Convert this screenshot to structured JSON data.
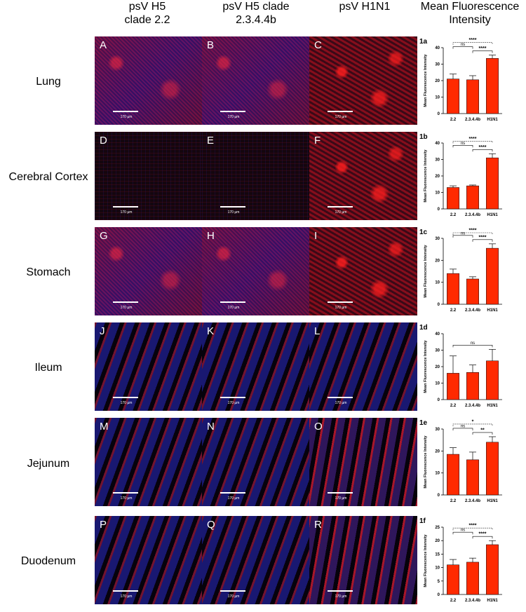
{
  "column_headers": [
    {
      "line1": "psV H5",
      "line2": "clade 2.2"
    },
    {
      "line1": "psV H5 clade",
      "line2": "2.3.4.4b"
    },
    {
      "line1": "psV H1N1",
      "line2": ""
    },
    {
      "line1": "Mean Fluorescence",
      "line2": "Intensity"
    }
  ],
  "rows": [
    {
      "label": "Lung",
      "panels": [
        "A",
        "B",
        "C"
      ],
      "chart_id": "1a"
    },
    {
      "label": "Cerebral Cortex",
      "panels": [
        "D",
        "E",
        "F"
      ],
      "chart_id": "1b"
    },
    {
      "label": "Stomach",
      "panels": [
        "G",
        "H",
        "I"
      ],
      "chart_id": "1c"
    },
    {
      "label": "Ileum",
      "panels": [
        "J",
        "K",
        "L"
      ],
      "chart_id": "1d"
    },
    {
      "label": "Jejunum",
      "panels": [
        "M",
        "N",
        "O"
      ],
      "chart_id": "1e"
    },
    {
      "label": "Duodenum",
      "panels": [
        "P",
        "Q",
        "R"
      ],
      "chart_id": "1f"
    }
  ],
  "scale_bar_text": "170 µm",
  "chart_data": [
    {
      "id": "1a",
      "type": "bar",
      "categories": [
        "2.2",
        "2.3.4.4b",
        "H1N1"
      ],
      "values": [
        21,
        20.5,
        33.5
      ],
      "errors": [
        3,
        2.5,
        2
      ],
      "ylabel": "Mean Fluorescence Intensity",
      "ylim": [
        0,
        40
      ],
      "yticks": [
        0,
        10,
        20,
        30,
        40
      ],
      "color": "#ff2a00",
      "annotations": [
        {
          "from": 0,
          "to": 2,
          "text": "****",
          "dashed": true
        },
        {
          "from": 1,
          "to": 2,
          "text": "****",
          "dashed": false
        },
        {
          "from": 0,
          "to": 1,
          "text": "ns",
          "dashed": false
        }
      ]
    },
    {
      "id": "1b",
      "type": "bar",
      "categories": [
        "2.2",
        "2.3.4.4b",
        "H1N1"
      ],
      "values": [
        13,
        14,
        31
      ],
      "errors": [
        1,
        0.5,
        2.5
      ],
      "ylabel": "Mean Fluorescence Intensity",
      "ylim": [
        0,
        40
      ],
      "yticks": [
        0,
        10,
        20,
        30,
        40
      ],
      "color": "#ff2a00",
      "annotations": [
        {
          "from": 0,
          "to": 2,
          "text": "****",
          "dashed": true
        },
        {
          "from": 1,
          "to": 2,
          "text": "****",
          "dashed": false
        },
        {
          "from": 0,
          "to": 1,
          "text": "ns",
          "dashed": false
        }
      ]
    },
    {
      "id": "1c",
      "type": "bar",
      "categories": [
        "2.2",
        "2.3.4.4b",
        "H1N1"
      ],
      "values": [
        14,
        11.5,
        25.5
      ],
      "errors": [
        2,
        1,
        2
      ],
      "ylabel": "Mean Fluorescence Intensity",
      "ylim": [
        0,
        30
      ],
      "yticks": [
        0,
        10,
        20,
        30
      ],
      "color": "#ff2a00",
      "annotations": [
        {
          "from": 0,
          "to": 2,
          "text": "****",
          "dashed": true
        },
        {
          "from": 1,
          "to": 2,
          "text": "****",
          "dashed": false
        },
        {
          "from": 0,
          "to": 1,
          "text": "ns",
          "dashed": false
        }
      ]
    },
    {
      "id": "1d",
      "type": "bar",
      "categories": [
        "2.2",
        "2.3.4.4b",
        "H1N1"
      ],
      "values": [
        16,
        16.5,
        23.5
      ],
      "errors": [
        10.5,
        4.5,
        7
      ],
      "ylabel": "Mean Fluorescence Intensity",
      "ylim": [
        0,
        40
      ],
      "yticks": [
        0,
        10,
        20,
        30,
        40
      ],
      "color": "#ff2a00",
      "annotations": [
        {
          "from": 0,
          "to": 2,
          "text": "ns",
          "dashed": false
        }
      ]
    },
    {
      "id": "1e",
      "type": "bar",
      "categories": [
        "2.2",
        "2.3.4.4b",
        "H1N1"
      ],
      "values": [
        18.5,
        16,
        24
      ],
      "errors": [
        3,
        3.5,
        2.5
      ],
      "ylabel": "Mean Fluorescence Intensity",
      "ylim": [
        0,
        30
      ],
      "yticks": [
        0,
        10,
        20,
        30
      ],
      "color": "#ff2a00",
      "annotations": [
        {
          "from": 0,
          "to": 2,
          "text": "*",
          "dashed": true
        },
        {
          "from": 1,
          "to": 2,
          "text": "**",
          "dashed": false
        },
        {
          "from": 0,
          "to": 1,
          "text": "ns",
          "dashed": false
        }
      ]
    },
    {
      "id": "1f",
      "type": "bar",
      "categories": [
        "2.2",
        "2.3.4.4b",
        "H1N1"
      ],
      "values": [
        11,
        12,
        18.5
      ],
      "errors": [
        2,
        1.5,
        1.5
      ],
      "ylabel": "Mean Fluorescence Intensity",
      "ylim": [
        0,
        25
      ],
      "yticks": [
        0,
        5,
        10,
        15,
        20,
        25
      ],
      "color": "#ff2a00",
      "annotations": [
        {
          "from": 0,
          "to": 2,
          "text": "****",
          "dashed": true
        },
        {
          "from": 1,
          "to": 2,
          "text": "****",
          "dashed": false
        },
        {
          "from": 0,
          "to": 1,
          "text": "ns",
          "dashed": false
        }
      ]
    }
  ]
}
